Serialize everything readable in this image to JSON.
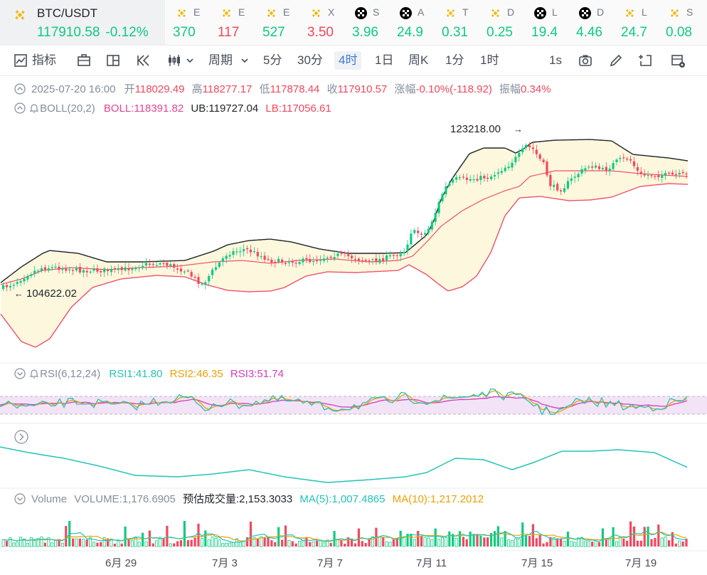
{
  "ticker": {
    "main": {
      "symbol": "BTC/USDT",
      "price": "117910.58",
      "change": "-0.12%"
    },
    "items": [
      {
        "letter": "E",
        "value": "370",
        "dir": "up",
        "icon": "binance-icon"
      },
      {
        "letter": "E",
        "value": "117",
        "dir": "dn",
        "icon": "binance-icon"
      },
      {
        "letter": "E",
        "value": "527",
        "dir": "up",
        "icon": "binance-icon"
      },
      {
        "letter": "X",
        "value": "3.50",
        "dir": "dn",
        "icon": "binance-icon"
      },
      {
        "letter": "S",
        "value": "3.96",
        "dir": "up",
        "icon": "okx-icon"
      },
      {
        "letter": "A",
        "value": "24.9",
        "dir": "up",
        "icon": "okx-icon"
      },
      {
        "letter": "T",
        "value": "0.31",
        "dir": "up",
        "icon": "binance-icon"
      },
      {
        "letter": "D",
        "value": "0.25",
        "dir": "up",
        "icon": "binance-icon"
      },
      {
        "letter": "L",
        "value": "19.4",
        "dir": "up",
        "icon": "okx-icon"
      },
      {
        "letter": "D",
        "value": "4.46",
        "dir": "up",
        "icon": "okx-icon"
      },
      {
        "letter": "L",
        "value": "24.7",
        "dir": "up",
        "icon": "binance-icon"
      },
      {
        "letter": "S",
        "value": "0.08",
        "dir": "up",
        "icon": "binance-icon"
      }
    ]
  },
  "toolbar": {
    "indicators": "指标",
    "period": "周期",
    "intervals": [
      "5分",
      "30分",
      "4时",
      "1日",
      "周K",
      "1分",
      "1时"
    ],
    "selected": "4时",
    "speed": "1s"
  },
  "ohlc": {
    "time": "2025-07-20 16:00",
    "open_label": "开",
    "open": "118029.49",
    "high_label": "高",
    "high": "118277.17",
    "low_label": "低",
    "low": "117878.44",
    "close_label": "收",
    "close": "117910.57",
    "chg_label": "涨幅",
    "chg": "-0.10%(-118.92)",
    "amp_label": "振幅",
    "amp": "0.34%"
  },
  "boll": {
    "name": "BOLL(20,2)",
    "mid": "BOLL:118391.82",
    "ub": "UB:119727.04",
    "lb": "LB:117056.61"
  },
  "annotations": {
    "high": "123218.00",
    "low": "104622.02"
  },
  "rsi": {
    "name": "RSI(6,12,24)",
    "r1": "RSI1:41.80",
    "r2": "RSI2:46.35",
    "r3": "RSI3:51.74"
  },
  "volume": {
    "name": "Volume",
    "vol": "VOLUME:1,176.6905",
    "est": "预估成交量:2,153.3033",
    "ma5": "MA(5):1,007.4865",
    "ma10": "MA(10):1,217.2012"
  },
  "xaxis": [
    "6月 29",
    "7月 3",
    "7月 7",
    "7月 11",
    "7月 15",
    "7月 19"
  ],
  "colors": {
    "up": "#0ecb81",
    "down": "#f6465d",
    "boll_ub": "#1e2329",
    "boll_mid": "#f0506e",
    "boll_lb": "#f0506e",
    "band": "#fdf7dd",
    "rsi1": "#22c3b8",
    "rsi2": "#f0a000",
    "rsi3": "#d63cb9",
    "accent": "#3a7bd5"
  }
}
